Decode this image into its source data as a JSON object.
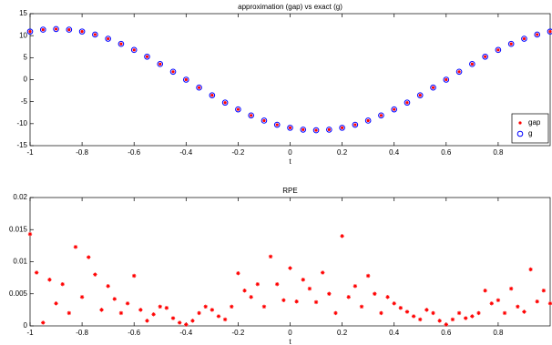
{
  "chart_data": [
    {
      "type": "scatter",
      "title": "approximation (gap) vs exact (g)",
      "xlabel": "t",
      "x": [
        -1,
        -0.95,
        -0.9,
        -0.85,
        -0.8,
        -0.75,
        -0.7,
        -0.65,
        -0.6,
        -0.55,
        -0.5,
        -0.45,
        -0.4,
        -0.35,
        -0.3,
        -0.25,
        -0.2,
        -0.15,
        -0.1,
        -0.05,
        0,
        0.05,
        0.1,
        0.15,
        0.2,
        0.25,
        0.3,
        0.35,
        0.4,
        0.45,
        0.5,
        0.55,
        0.6,
        0.65,
        0.7,
        0.75,
        0.8,
        0.85,
        0.9,
        0.95,
        1
      ],
      "series": [
        {
          "name": "gap",
          "color": "#ff0000",
          "marker": "dot",
          "values": [
            10.94,
            11.36,
            11.5,
            11.36,
            10.94,
            10.25,
            9.3,
            8.13,
            6.76,
            5.22,
            3.55,
            1.8,
            0,
            -1.8,
            -3.55,
            -5.22,
            -6.76,
            -8.13,
            -9.3,
            -10.25,
            -10.94,
            -11.36,
            -11.5,
            -11.36,
            -10.94,
            -10.25,
            -9.3,
            -8.13,
            -6.76,
            -5.22,
            -3.55,
            -1.8,
            0,
            1.8,
            3.55,
            5.22,
            6.76,
            8.13,
            9.3,
            10.25,
            10.94
          ]
        },
        {
          "name": "g",
          "color": "#0000ff",
          "marker": "circle",
          "values": [
            10.94,
            11.36,
            11.5,
            11.36,
            10.94,
            10.25,
            9.3,
            8.13,
            6.76,
            5.22,
            3.55,
            1.8,
            0,
            -1.8,
            -3.55,
            -5.22,
            -6.76,
            -8.13,
            -9.3,
            -10.25,
            -10.94,
            -11.36,
            -11.5,
            -11.36,
            -10.94,
            -10.25,
            -9.3,
            -8.13,
            -6.76,
            -5.22,
            -3.55,
            -1.8,
            0,
            1.8,
            3.55,
            5.22,
            6.76,
            8.13,
            9.3,
            10.25,
            10.94
          ]
        }
      ],
      "xlim": [
        -1,
        1
      ],
      "xticks": [
        -1,
        -0.8,
        -0.6,
        -0.4,
        -0.2,
        0,
        0.2,
        0.4,
        0.6,
        0.8
      ],
      "ylim": [
        -15,
        15
      ],
      "yticks": [
        -15,
        -10,
        -5,
        0,
        5,
        10,
        15
      ],
      "legend": "lower right"
    },
    {
      "type": "scatter",
      "title": "RPE",
      "xlabel": "t",
      "color": "#ff0000",
      "marker": "asterisk",
      "x": [
        -1,
        -0.975,
        -0.95,
        -0.925,
        -0.9,
        -0.875,
        -0.85,
        -0.825,
        -0.8,
        -0.775,
        -0.75,
        -0.725,
        -0.7,
        -0.675,
        -0.65,
        -0.625,
        -0.6,
        -0.575,
        -0.55,
        -0.525,
        -0.5,
        -0.475,
        -0.45,
        -0.425,
        -0.4,
        -0.375,
        -0.35,
        -0.325,
        -0.3,
        -0.275,
        -0.25,
        -0.225,
        -0.2,
        -0.175,
        -0.15,
        -0.125,
        -0.1,
        -0.075,
        -0.05,
        -0.025,
        0,
        0.025,
        0.05,
        0.075,
        0.1,
        0.125,
        0.15,
        0.175,
        0.2,
        0.225,
        0.25,
        0.275,
        0.3,
        0.325,
        0.35,
        0.375,
        0.4,
        0.425,
        0.45,
        0.475,
        0.5,
        0.525,
        0.55,
        0.575,
        0.6,
        0.625,
        0.65,
        0.675,
        0.7,
        0.725,
        0.75,
        0.775,
        0.8,
        0.825,
        0.85,
        0.875,
        0.9,
        0.925,
        0.95,
        0.975,
        1
      ],
      "values": [
        0.0143,
        0.0083,
        0.0005,
        0.0072,
        0.0035,
        0.0065,
        0.002,
        0.0123,
        0.0045,
        0.0107,
        0.008,
        0.0025,
        0.0062,
        0.0042,
        0.002,
        0.0035,
        0.0078,
        0.0025,
        0.0008,
        0.0018,
        0.003,
        0.0028,
        0.0012,
        0.0005,
        0.0002,
        0.0008,
        0.002,
        0.003,
        0.0025,
        0.0015,
        0.001,
        0.003,
        0.0082,
        0.0055,
        0.0045,
        0.0065,
        0.003,
        0.0108,
        0.0065,
        0.004,
        0.009,
        0.0038,
        0.0072,
        0.0058,
        0.0037,
        0.0083,
        0.005,
        0.002,
        0.014,
        0.0045,
        0.0062,
        0.003,
        0.0078,
        0.005,
        0.002,
        0.0045,
        0.0035,
        0.0028,
        0.0022,
        0.0015,
        0.001,
        0.0025,
        0.002,
        0.0008,
        0.0002,
        0.001,
        0.002,
        0.0012,
        0.0015,
        0.002,
        0.0055,
        0.0035,
        0.004,
        0.002,
        0.0058,
        0.003,
        0.0022,
        0.0088,
        0.0038,
        0.0055,
        0.0035
      ],
      "xlim": [
        -1,
        1
      ],
      "xticks": [
        -1,
        -0.8,
        -0.6,
        -0.4,
        -0.2,
        0,
        0.2,
        0.4,
        0.6,
        0.8
      ],
      "ylim": [
        0,
        0.02
      ],
      "yticks": [
        0,
        0.005,
        0.01,
        0.015,
        0.02
      ]
    }
  ]
}
